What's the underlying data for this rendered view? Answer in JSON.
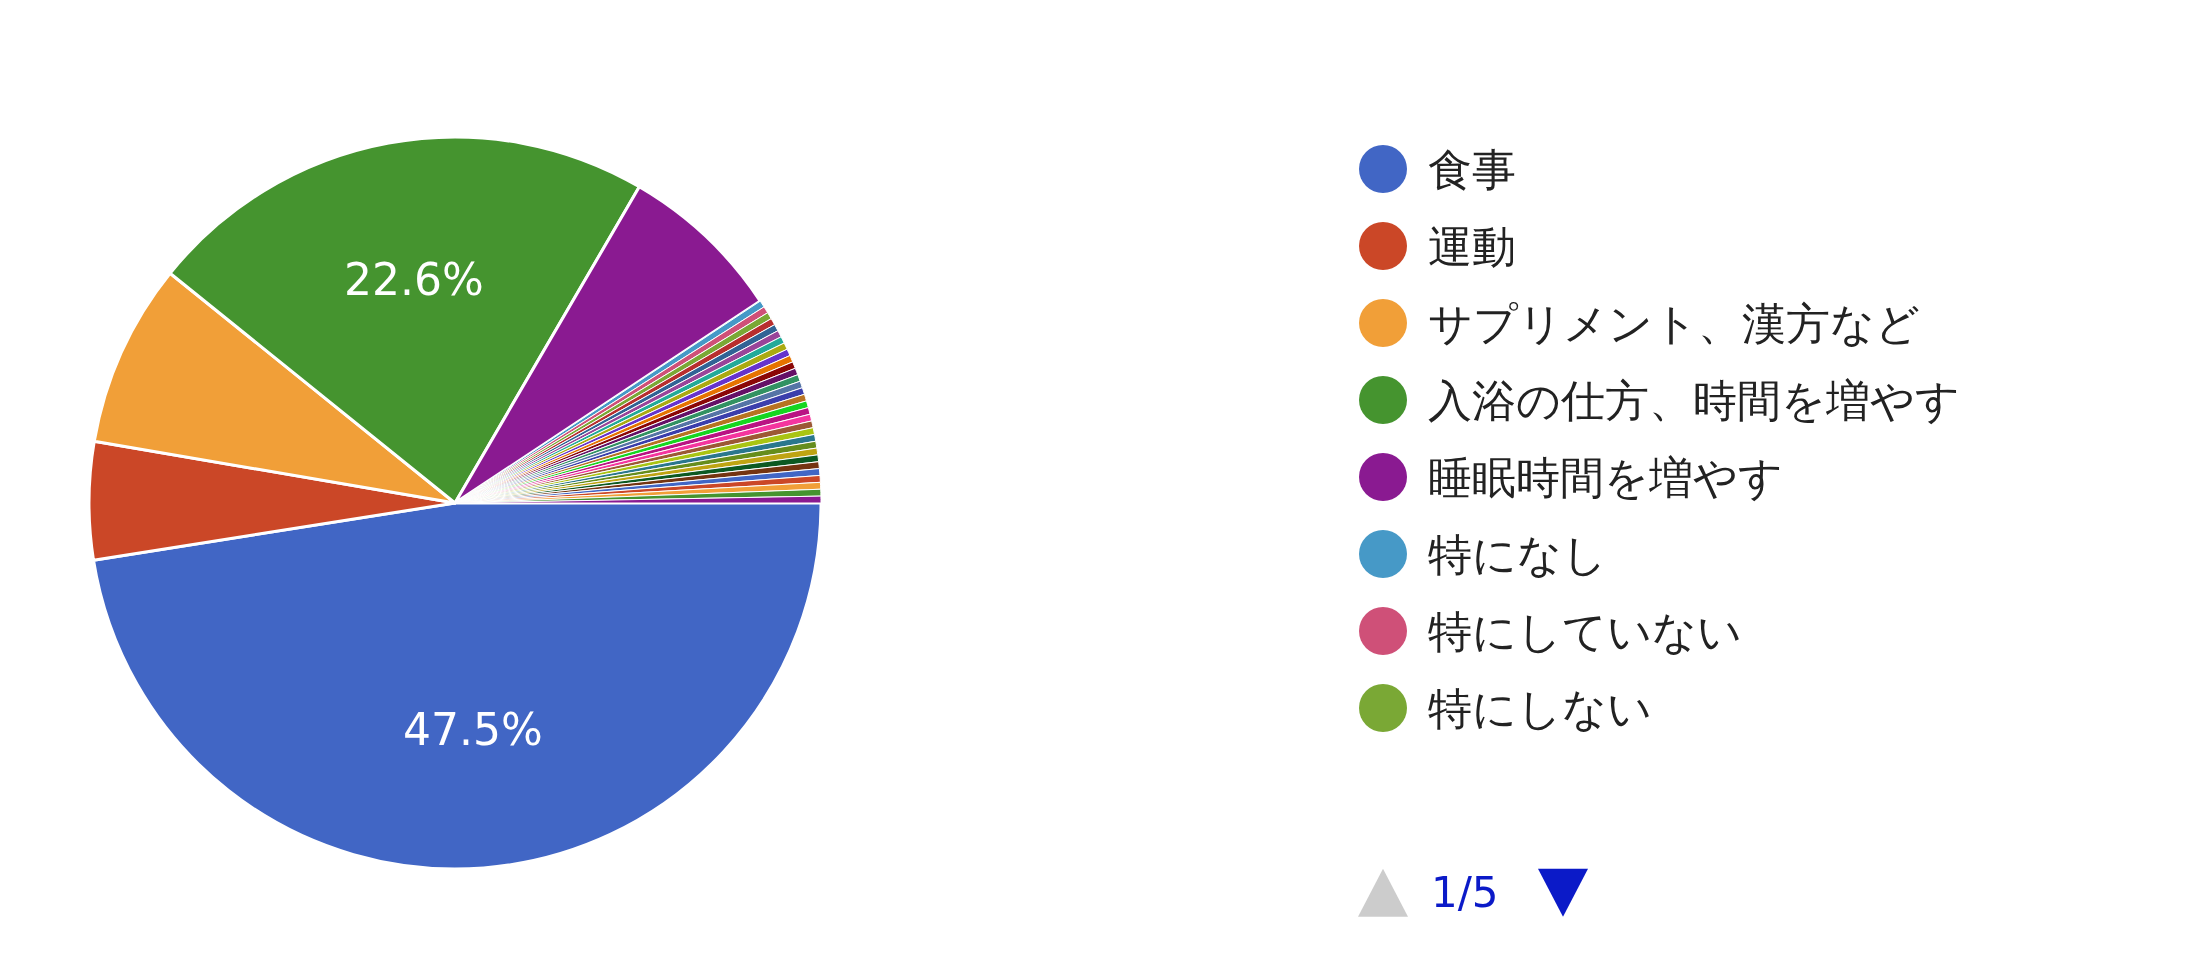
{
  "chart_data": {
    "type": "pie",
    "categories": [
      "食事",
      "運動",
      "サプリメント、漢方など",
      "入浴の仕方、時間を増やす",
      "睡眠時間を増やす",
      "特になし",
      "特にしていない",
      "特にしない",
      null,
      null,
      null,
      null,
      null,
      null,
      null,
      null,
      null,
      null,
      null,
      null,
      null,
      null,
      null,
      null,
      null,
      null,
      null,
      null,
      null,
      null,
      null,
      null,
      null,
      null,
      null,
      null
    ],
    "values": [
      47.5,
      5.2,
      8.1,
      22.6,
      7.3,
      0.3,
      0.3,
      0.3,
      0.3,
      0.3,
      0.3,
      0.3,
      0.3,
      0.3,
      0.3,
      0.3,
      0.3,
      0.3,
      0.3,
      0.3,
      0.3,
      0.3,
      0.3,
      0.3,
      0.3,
      0.3,
      0.3,
      0.3,
      0.3,
      0.3,
      0.3,
      0.3,
      0.3,
      0.3,
      0.3,
      0.3
    ],
    "colors": [
      "#4166c5",
      "#cb4727",
      "#f19f38",
      "#45942f",
      "#8a1a91",
      "#4699c7",
      "#cf5078",
      "#7aa835",
      "#b82e2e",
      "#316395",
      "#994499",
      "#22aa99",
      "#aaaa11",
      "#6633cc",
      "#e67300",
      "#8b0707",
      "#651067",
      "#329262",
      "#5574a6",
      "#3b3eac",
      "#b77322",
      "#16d620",
      "#b91383",
      "#f4359e",
      "#9c5935",
      "#a9c413",
      "#2a778d",
      "#668d1c",
      "#bea413",
      "#0c5922",
      "#743411",
      "#4166c5",
      "#cb4727",
      "#f19f38",
      "#45942f",
      "#8a1a91"
    ],
    "value_labels": [
      "47.5%",
      null,
      null,
      "22.6%",
      null,
      null,
      null,
      null,
      null,
      null,
      null,
      null,
      null,
      null,
      null,
      null,
      null,
      null,
      null,
      null,
      null,
      null,
      null,
      null,
      null,
      null,
      null,
      null,
      null,
      null,
      null,
      null,
      null,
      null,
      null,
      null
    ],
    "legend": "right",
    "annotations": [
      "1/5"
    ]
  }
}
